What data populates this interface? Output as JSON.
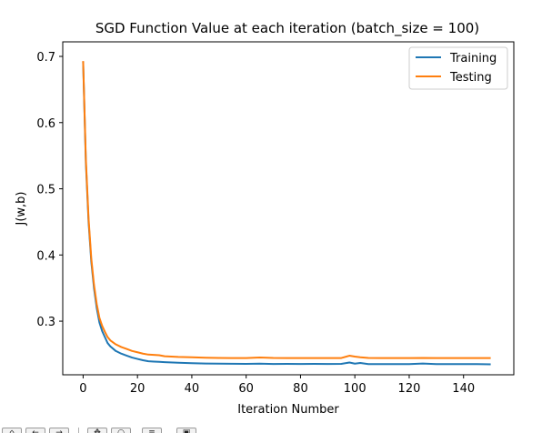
{
  "chart_data": {
    "type": "line",
    "title": "SGD Function Value at each iteration (batch_size = 100)",
    "xlabel": "Iteration Number",
    "ylabel": "J(w,b)",
    "xlim": [
      -7.5,
      158.5
    ],
    "ylim": [
      0.219,
      0.722
    ],
    "xticks": [
      0,
      20,
      40,
      60,
      80,
      100,
      120,
      140
    ],
    "yticks": [
      0.3,
      0.4,
      0.5,
      0.6,
      0.7
    ],
    "xtick_labels": [
      "0",
      "20",
      "40",
      "60",
      "80",
      "100",
      "120",
      "140"
    ],
    "ytick_labels": [
      "0.3",
      "0.4",
      "0.5",
      "0.6",
      "0.7"
    ],
    "grid": false,
    "legend_position": "top-right",
    "series": [
      {
        "name": "Training",
        "color": "#1f77b4",
        "x": [
          0,
          1,
          2,
          3,
          4,
          5,
          6,
          7,
          8,
          9,
          10,
          12,
          14,
          16,
          18,
          20,
          22,
          24,
          26,
          28,
          30,
          35,
          40,
          45,
          50,
          55,
          60,
          65,
          70,
          75,
          80,
          85,
          90,
          95,
          98,
          100,
          102,
          105,
          110,
          115,
          120,
          125,
          130,
          135,
          140,
          145,
          150
        ],
        "y": [
          0.692,
          0.54,
          0.45,
          0.39,
          0.35,
          0.32,
          0.298,
          0.285,
          0.276,
          0.267,
          0.262,
          0.255,
          0.251,
          0.248,
          0.245,
          0.243,
          0.241,
          0.2395,
          0.239,
          0.2385,
          0.238,
          0.2372,
          0.2366,
          0.236,
          0.2358,
          0.2356,
          0.2355,
          0.2358,
          0.2354,
          0.2355,
          0.2354,
          0.2355,
          0.2354,
          0.2355,
          0.2375,
          0.2358,
          0.2368,
          0.2352,
          0.2352,
          0.2351,
          0.2352,
          0.236,
          0.2352,
          0.2351,
          0.2352,
          0.2352,
          0.2348
        ]
      },
      {
        "name": "Testing",
        "color": "#ff7f0e",
        "x": [
          0,
          1,
          2,
          3,
          4,
          5,
          6,
          7,
          8,
          9,
          10,
          12,
          14,
          16,
          18,
          20,
          22,
          24,
          26,
          28,
          30,
          35,
          40,
          45,
          50,
          55,
          60,
          65,
          70,
          75,
          80,
          85,
          90,
          95,
          98,
          100,
          102,
          105,
          110,
          115,
          120,
          125,
          130,
          135,
          140,
          145,
          150
        ],
        "y": [
          0.693,
          0.545,
          0.455,
          0.395,
          0.355,
          0.326,
          0.305,
          0.293,
          0.284,
          0.276,
          0.271,
          0.265,
          0.261,
          0.258,
          0.255,
          0.253,
          0.251,
          0.2495,
          0.249,
          0.2485,
          0.247,
          0.246,
          0.2455,
          0.2448,
          0.2445,
          0.2443,
          0.2442,
          0.2452,
          0.2445,
          0.2443,
          0.2442,
          0.2443,
          0.2442,
          0.2443,
          0.2478,
          0.2465,
          0.2455,
          0.2445,
          0.2443,
          0.2442,
          0.2443,
          0.2445,
          0.2442,
          0.2443,
          0.2442,
          0.2443,
          0.2442
        ]
      }
    ]
  }
}
